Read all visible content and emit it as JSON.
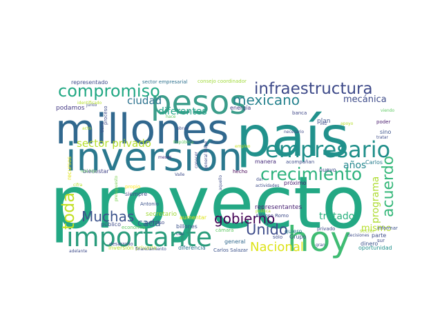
{
  "word_cloud": {
    "background": "#ffffff",
    "words": [
      {
        "text": "proyecto",
        "color": "#23a884"
      },
      {
        "text": "país",
        "color": "#21918c"
      },
      {
        "text": "millones",
        "color": "#31688e"
      },
      {
        "text": "inversión",
        "color": "#2a788e"
      },
      {
        "text": "pesos",
        "color": "#3b9d8a"
      },
      {
        "text": "hoy",
        "color": "#3fbc73"
      },
      {
        "text": "importante",
        "color": "#2a9c7c"
      },
      {
        "text": "empresario",
        "color": "#208f8a"
      },
      {
        "text": "infraestructura",
        "color": "#3e4a89"
      },
      {
        "text": "compromiso",
        "color": "#22a884"
      },
      {
        "text": "crecimiento",
        "color": "#2db27d"
      },
      {
        "text": "mexicano",
        "color": "#26828e"
      },
      {
        "text": "gobierno",
        "color": "#440154"
      },
      {
        "text": "Nacional",
        "color": "#dde318"
      },
      {
        "text": "acuerdo",
        "color": "#35b779"
      },
      {
        "text": "Muchas",
        "color": "#3b528b"
      },
      {
        "text": "Unido",
        "color": "#3e4c8a"
      },
      {
        "text": "toda",
        "color": "#c2df23"
      },
      {
        "text": "sector privado",
        "color": "#b5de2b"
      },
      {
        "text": "ciudad",
        "color": "#2c728e"
      },
      {
        "text": "diferentes",
        "color": "#20a386"
      },
      {
        "text": "mecánica",
        "color": "#3e4c8a"
      },
      {
        "text": "tratado",
        "color": "#2ab07f"
      },
      {
        "text": "programa",
        "color": "#addc30"
      },
      {
        "text": "cada",
        "color": "#31688e"
      },
      {
        "text": "años",
        "color": "#24878e"
      },
      {
        "text": "mismo",
        "color": "#b5de2b"
      },
      {
        "text": "Carlos",
        "color": "#287c8e"
      },
      {
        "text": "podamos",
        "color": "#443983"
      },
      {
        "text": "representantes",
        "color": "#482173"
      },
      {
        "text": "representado",
        "color": "#3e4c8a"
      },
      {
        "text": "sector empresarial",
        "color": "#2d718e"
      },
      {
        "text": "consejo coordinador",
        "color": "#a0da39"
      },
      {
        "text": "energía",
        "color": "#443983"
      },
      {
        "text": "banca",
        "color": "#3f4788"
      },
      {
        "text": "plan",
        "color": "#3b528b"
      },
      {
        "text": "sino",
        "color": "#3b528b"
      },
      {
        "text": "poder",
        "color": "#481b6d"
      },
      {
        "text": "recursos",
        "color": "#e5e419"
      },
      {
        "text": "bienestar",
        "color": "#414487"
      },
      {
        "text": "hecho",
        "color": "#440154"
      },
      {
        "text": "meses",
        "color": "#472d7b"
      },
      {
        "text": "empleo",
        "color": "#c2df23"
      },
      {
        "text": "economía",
        "color": "#5ec962"
      },
      {
        "text": "permiso",
        "color": "#3e4a89"
      },
      {
        "text": "secretario",
        "color": "#a0da39"
      },
      {
        "text": "billones",
        "color": "#3b528b"
      },
      {
        "text": "Antonio",
        "color": "#3b528b"
      },
      {
        "text": "siempre",
        "color": "#3e4c8a"
      },
      {
        "text": "aumentar",
        "color": "#dde318"
      },
      {
        "text": "inversión privada",
        "color": "#b5de2b"
      },
      {
        "text": "diferencia",
        "color": "#2c728e"
      },
      {
        "text": "general",
        "color": "#31688e"
      },
      {
        "text": "Carlos Salazar",
        "color": "#3b528b"
      },
      {
        "text": "dinero",
        "color": "#3b528b"
      },
      {
        "text": "oportunidad",
        "color": "#21918c"
      },
      {
        "text": "Alfonso Romo",
        "color": "#3e4c8a"
      },
      {
        "text": "próximo",
        "color": "#481b6d"
      },
      {
        "text": "manera",
        "color": "#472d7b"
      },
      {
        "text": "acompañan",
        "color": "#3e4c8a"
      },
      {
        "text": "nuevo",
        "color": "#3e4c8a"
      },
      {
        "text": "quiero",
        "color": "#287d8e"
      },
      {
        "text": "Grupo",
        "color": "#3b528b"
      },
      {
        "text": "parte",
        "color": "#3e4c8a"
      },
      {
        "text": "privado",
        "color": "#3e4c8a"
      },
      {
        "text": "informar",
        "color": "#3b528b"
      },
      {
        "text": "sector",
        "color": "#addc30"
      },
      {
        "text": "sur",
        "color": "#3e4c8a"
      },
      {
        "text": "adelante",
        "color": "#3e4c8a"
      },
      {
        "text": "desarrollo",
        "color": "#3e4c8a"
      },
      {
        "text": "financiamiento",
        "color": "#3e4c8a"
      },
      {
        "text": "público",
        "color": "#3e4c8a"
      },
      {
        "text": "casi",
        "color": "#3e4c8a"
      },
      {
        "text": "sólo",
        "color": "#3e4c8a"
      },
      {
        "text": "cámara",
        "color": "#5ec962"
      },
      {
        "text": "propio",
        "color": "#fde725"
      },
      {
        "text": "presupuesto",
        "color": "#7ad151"
      },
      {
        "text": "luis hijo",
        "color": "#5ec962"
      },
      {
        "text": "Valle",
        "color": "#3e4c8a"
      },
      {
        "text": "dar",
        "color": "#3e4c8a"
      },
      {
        "text": "tratar",
        "color": "#3e4c8a"
      },
      {
        "text": "decisiones",
        "color": "#3e4c8a"
      },
      {
        "text": "viendo",
        "color": "#5ec962"
      },
      {
        "text": "necesario",
        "color": "#3e4c8a"
      },
      {
        "text": "actividades",
        "color": "#3e4c8a"
      },
      {
        "text": "aquello",
        "color": "#3e4c8a"
      },
      {
        "text": "conocer",
        "color": "#3e4c8a"
      },
      {
        "text": "general felipe",
        "color": "#3e4c8a"
      },
      {
        "text": "República",
        "color": "#5ec962"
      },
      {
        "text": "junto",
        "color": "#3e4c8a"
      },
      {
        "text": "identificado",
        "color": "#b5de2b"
      },
      {
        "text": "tiene",
        "color": "#3e4c8a"
      },
      {
        "text": "proceso",
        "color": "#3e4c8a"
      },
      {
        "text": "acto",
        "color": "#b5de2b"
      },
      {
        "text": "cifra",
        "color": "#b5de2b"
      },
      {
        "text": "vez",
        "color": "#3e4c8a"
      },
      {
        "text": "apoyo",
        "color": "#b5de2b"
      },
      {
        "text": "política",
        "color": "#b5de2b"
      },
      {
        "text": "hace",
        "color": "#5ec962"
      },
      {
        "text": "obras",
        "color": "#3e4c8a"
      },
      {
        "text": "gran",
        "color": "#3e4c8a"
      }
    ]
  }
}
